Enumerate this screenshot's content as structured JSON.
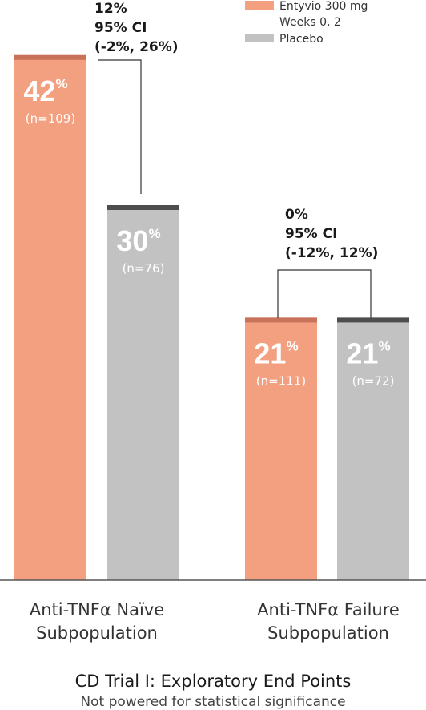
{
  "colors": {
    "entyvio": "#f2a080",
    "entyvio_cap": "#c8725a",
    "placebo": "#c2c2c2",
    "placebo_cap": "#4d4d4d",
    "axis": "#555555",
    "bracket": "#333333"
  },
  "legend": [
    {
      "label_lines": [
        "Entyvio 300 mg",
        "Weeks 0, 2"
      ],
      "color": "#f2a080"
    },
    {
      "label_lines": [
        "Placebo"
      ],
      "color": "#c2c2c2"
    }
  ],
  "chart_data": {
    "type": "bar",
    "title": "CD Trial I: Exploratory End Points",
    "subtitle": "Not powered for statistical significance",
    "ylim": [
      0,
      50
    ],
    "grid": false,
    "legend_position": "top-right",
    "categories": [
      {
        "lines": [
          "Anti-TNFα Naïve",
          "Subpopulation"
        ]
      },
      {
        "lines": [
          "Anti-TNFα Failure",
          "Subpopulation"
        ]
      }
    ],
    "series": [
      {
        "name": "Entyvio 300 mg Weeks 0, 2",
        "values": [
          42,
          21
        ],
        "n_labels": [
          "(n=109)",
          "(n=111)"
        ]
      },
      {
        "name": "Placebo",
        "values": [
          30,
          21
        ],
        "n_labels": [
          "(n=76)",
          "(n=72)"
        ]
      }
    ],
    "comparisons": [
      {
        "lines": [
          "12%",
          "95% CI",
          "(-2%, 26%)"
        ]
      },
      {
        "lines": [
          "0%",
          "95% CI",
          "(-12%, 12%)"
        ]
      }
    ],
    "value_labels": [
      [
        "42",
        "21"
      ],
      [
        "30",
        "21"
      ]
    ],
    "percent_sign": "%"
  }
}
